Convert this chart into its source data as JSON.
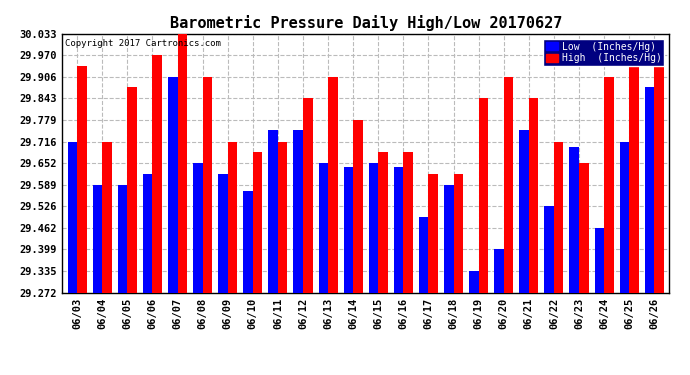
{
  "title": "Barometric Pressure Daily High/Low 20170627",
  "copyright": "Copyright 2017 Cartronics.com",
  "legend_low": "Low  (Inches/Hg)",
  "legend_high": "High  (Inches/Hg)",
  "dates": [
    "06/03",
    "06/04",
    "06/05",
    "06/06",
    "06/07",
    "06/08",
    "06/09",
    "06/10",
    "06/11",
    "06/12",
    "06/13",
    "06/14",
    "06/15",
    "06/16",
    "06/17",
    "06/18",
    "06/19",
    "06/20",
    "06/21",
    "06/22",
    "06/23",
    "06/24",
    "06/25",
    "06/26"
  ],
  "low": [
    29.716,
    29.589,
    29.589,
    29.62,
    29.906,
    29.652,
    29.62,
    29.57,
    29.75,
    29.75,
    29.652,
    29.64,
    29.652,
    29.64,
    29.493,
    29.589,
    29.335,
    29.399,
    29.75,
    29.526,
    29.7,
    29.463,
    29.716,
    29.875
  ],
  "high": [
    29.938,
    29.716,
    29.875,
    29.97,
    30.033,
    29.906,
    29.716,
    29.685,
    29.716,
    29.843,
    29.906,
    29.779,
    29.685,
    29.685,
    29.62,
    29.62,
    29.843,
    29.906,
    29.843,
    29.716,
    29.652,
    29.906,
    29.97,
    29.97
  ],
  "ylim": [
    29.272,
    30.033
  ],
  "yticks": [
    29.272,
    29.335,
    29.399,
    29.462,
    29.526,
    29.589,
    29.652,
    29.716,
    29.779,
    29.843,
    29.906,
    29.97,
    30.033
  ],
  "bar_width": 0.38,
  "low_color": "#0000ff",
  "high_color": "#ff0000",
  "bg_color": "#ffffff",
  "grid_color": "#bbbbbb",
  "title_fontsize": 11,
  "tick_fontsize": 7.5
}
